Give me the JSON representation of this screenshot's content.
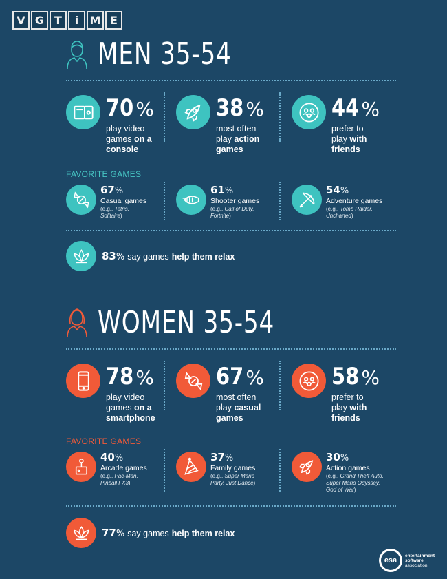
{
  "logo": {
    "letters": [
      "V",
      "G",
      "T",
      "i",
      "M",
      "E"
    ]
  },
  "men": {
    "title": "MEN 35-54",
    "stats": [
      {
        "num": "70",
        "pct": "%",
        "line1": "play video",
        "line2_plain": "games ",
        "line2_bold": "on a",
        "line3_bold": "console"
      },
      {
        "num": "38",
        "pct": "%",
        "line1": "most often",
        "line2_plain": "play ",
        "line2_bold": "action",
        "line3_bold": "games"
      },
      {
        "num": "44",
        "pct": "%",
        "line1": "prefer to",
        "line2_plain": "play ",
        "line2_bold": "with",
        "line3_bold": "friends"
      }
    ],
    "favorite_label": "FAVORITE GAMES",
    "games": [
      {
        "num": "67",
        "pct": "%",
        "name": "Casual games",
        "ex_label": "(e.g., ",
        "ex1": "Tetris,",
        "ex2": "Solitaire",
        "ex_end": ")"
      },
      {
        "num": "61",
        "pct": "%",
        "name": "Shooter games",
        "ex_label": "(e.g., ",
        "ex1": "Call of Duty,",
        "ex2": "Fortnite",
        "ex_end": ")"
      },
      {
        "num": "54",
        "pct": "%",
        "name": "Adventure games",
        "ex_label": "(e.g., ",
        "ex1": "Tomb Raider,",
        "ex2": "Uncharted",
        "ex_end": ")"
      }
    ],
    "relax": {
      "num": "83",
      "pct": "%",
      "text_plain": "say games",
      "text_bold": "help them relax"
    }
  },
  "women": {
    "title": "WOMEN 35-54",
    "stats": [
      {
        "num": "78",
        "pct": "%",
        "line1": "play video",
        "line2_plain": "games ",
        "line2_bold": "on a",
        "line3_bold": "smartphone"
      },
      {
        "num": "67",
        "pct": "%",
        "line1": "most often",
        "line2_plain": "play ",
        "line2_bold": "casual",
        "line3_bold": "games"
      },
      {
        "num": "58",
        "pct": "%",
        "line1": "prefer to",
        "line2_plain": "play ",
        "line2_bold": "with",
        "line3_bold": "friends"
      }
    ],
    "favorite_label": "FAVORITE GAMES",
    "games": [
      {
        "num": "40",
        "pct": "%",
        "name": "Arcade games",
        "ex_label": "(e.g., ",
        "ex1": "Pac-Man,",
        "ex2": "Pinball FX3",
        "ex_end": ")"
      },
      {
        "num": "37",
        "pct": "%",
        "name": "Family games",
        "ex_label": "(e.g., ",
        "ex1": "Super Mario",
        "ex2": "Party, Just Dance",
        "ex_end": ")"
      },
      {
        "num": "30",
        "pct": "%",
        "name": "Action games",
        "ex_label": "(e.g., ",
        "ex1": "Grand Theft Auto,",
        "ex2": "Super Mario Odyssey,",
        "ex3": "God of War",
        "ex_end": ")"
      }
    ],
    "relax": {
      "num": "77",
      "pct": "%",
      "text_plain": "say games",
      "text_bold": "help them relax"
    }
  },
  "esa": {
    "mark": "esa",
    "line1": "entertainment",
    "line2": "software",
    "line3": "association"
  },
  "colors": {
    "background": "#1c4766",
    "teal": "#3ec3c0",
    "orange": "#f15a38"
  },
  "icons": {
    "men": [
      "person-male-icon",
      "console-icon",
      "rocket-icon",
      "friends-icon",
      "candy-icon",
      "blaster-icon",
      "bow-arrow-icon",
      "lotus-icon"
    ],
    "women": [
      "person-female-icon",
      "smartphone-icon",
      "candy-icon",
      "friends-icon",
      "joystick-icon",
      "party-hat-icon",
      "rocket-icon",
      "lotus-icon"
    ]
  }
}
